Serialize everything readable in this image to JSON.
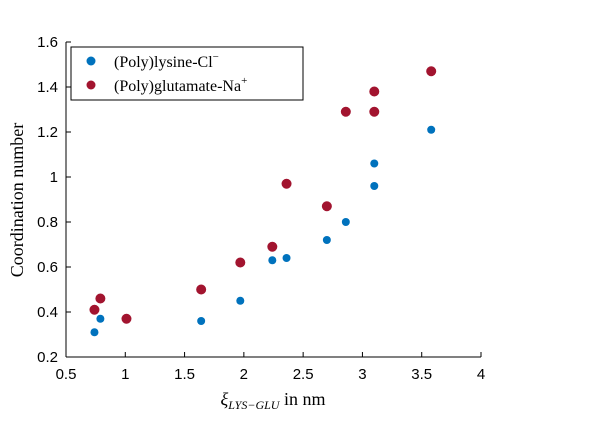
{
  "chart_data": {
    "type": "scatter",
    "title": "",
    "xlabel_symbol": "ξ",
    "xlabel_subscript": "LYS−GLU",
    "xlabel_suffix": " in nm",
    "ylabel": "Coordination number",
    "xlim": [
      0.5,
      4
    ],
    "ylim": [
      0.2,
      1.6
    ],
    "xticks": [
      0.5,
      1,
      1.5,
      2,
      2.5,
      3,
      3.5,
      4
    ],
    "yticks": [
      0.2,
      0.4,
      0.6,
      0.8,
      1,
      1.2,
      1.4,
      1.6
    ],
    "xtick_labels": [
      "0.5",
      "1",
      "1.5",
      "2",
      "2.5",
      "3",
      "3.5",
      "4"
    ],
    "ytick_labels": [
      "0.2",
      "0.4",
      "0.6",
      "0.8",
      "1",
      "1.2",
      "1.4",
      "1.6"
    ],
    "grid": false,
    "legend_position": "top-left",
    "series": [
      {
        "name": "(Poly)lysine-Cl",
        "name_sup": "−",
        "color": "#0072BD",
        "points": [
          [
            0.74,
            0.31
          ],
          [
            0.79,
            0.37
          ],
          [
            1.01,
            0.37
          ],
          [
            1.64,
            0.36
          ],
          [
            1.97,
            0.45
          ],
          [
            2.24,
            0.63
          ],
          [
            2.36,
            0.64
          ],
          [
            2.7,
            0.72
          ],
          [
            2.86,
            0.8
          ],
          [
            3.1,
            1.06
          ],
          [
            3.1,
            0.96
          ],
          [
            3.58,
            1.21
          ]
        ]
      },
      {
        "name": "(Poly)glutamate-Na",
        "name_sup": "+",
        "color": "#A2142F",
        "points": [
          [
            0.74,
            0.41
          ],
          [
            0.79,
            0.46
          ],
          [
            1.01,
            0.37
          ],
          [
            1.64,
            0.5
          ],
          [
            1.97,
            0.62
          ],
          [
            2.24,
            0.69
          ],
          [
            2.36,
            0.97
          ],
          [
            2.7,
            0.87
          ],
          [
            2.86,
            1.29
          ],
          [
            3.1,
            1.38
          ],
          [
            3.1,
            1.29
          ],
          [
            3.58,
            1.47
          ]
        ]
      }
    ]
  }
}
